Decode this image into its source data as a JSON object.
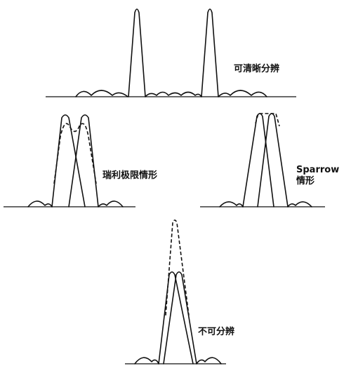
{
  "panels": [
    {
      "key": "clear",
      "label": "可清晰分辨"
    },
    {
      "key": "rayleigh",
      "label": "瑞利极限情形"
    },
    {
      "key": "sparrow",
      "label_line1": "Sparrow",
      "label_line2": "情形"
    },
    {
      "key": "unresolved",
      "label": "不可分辨"
    }
  ]
}
